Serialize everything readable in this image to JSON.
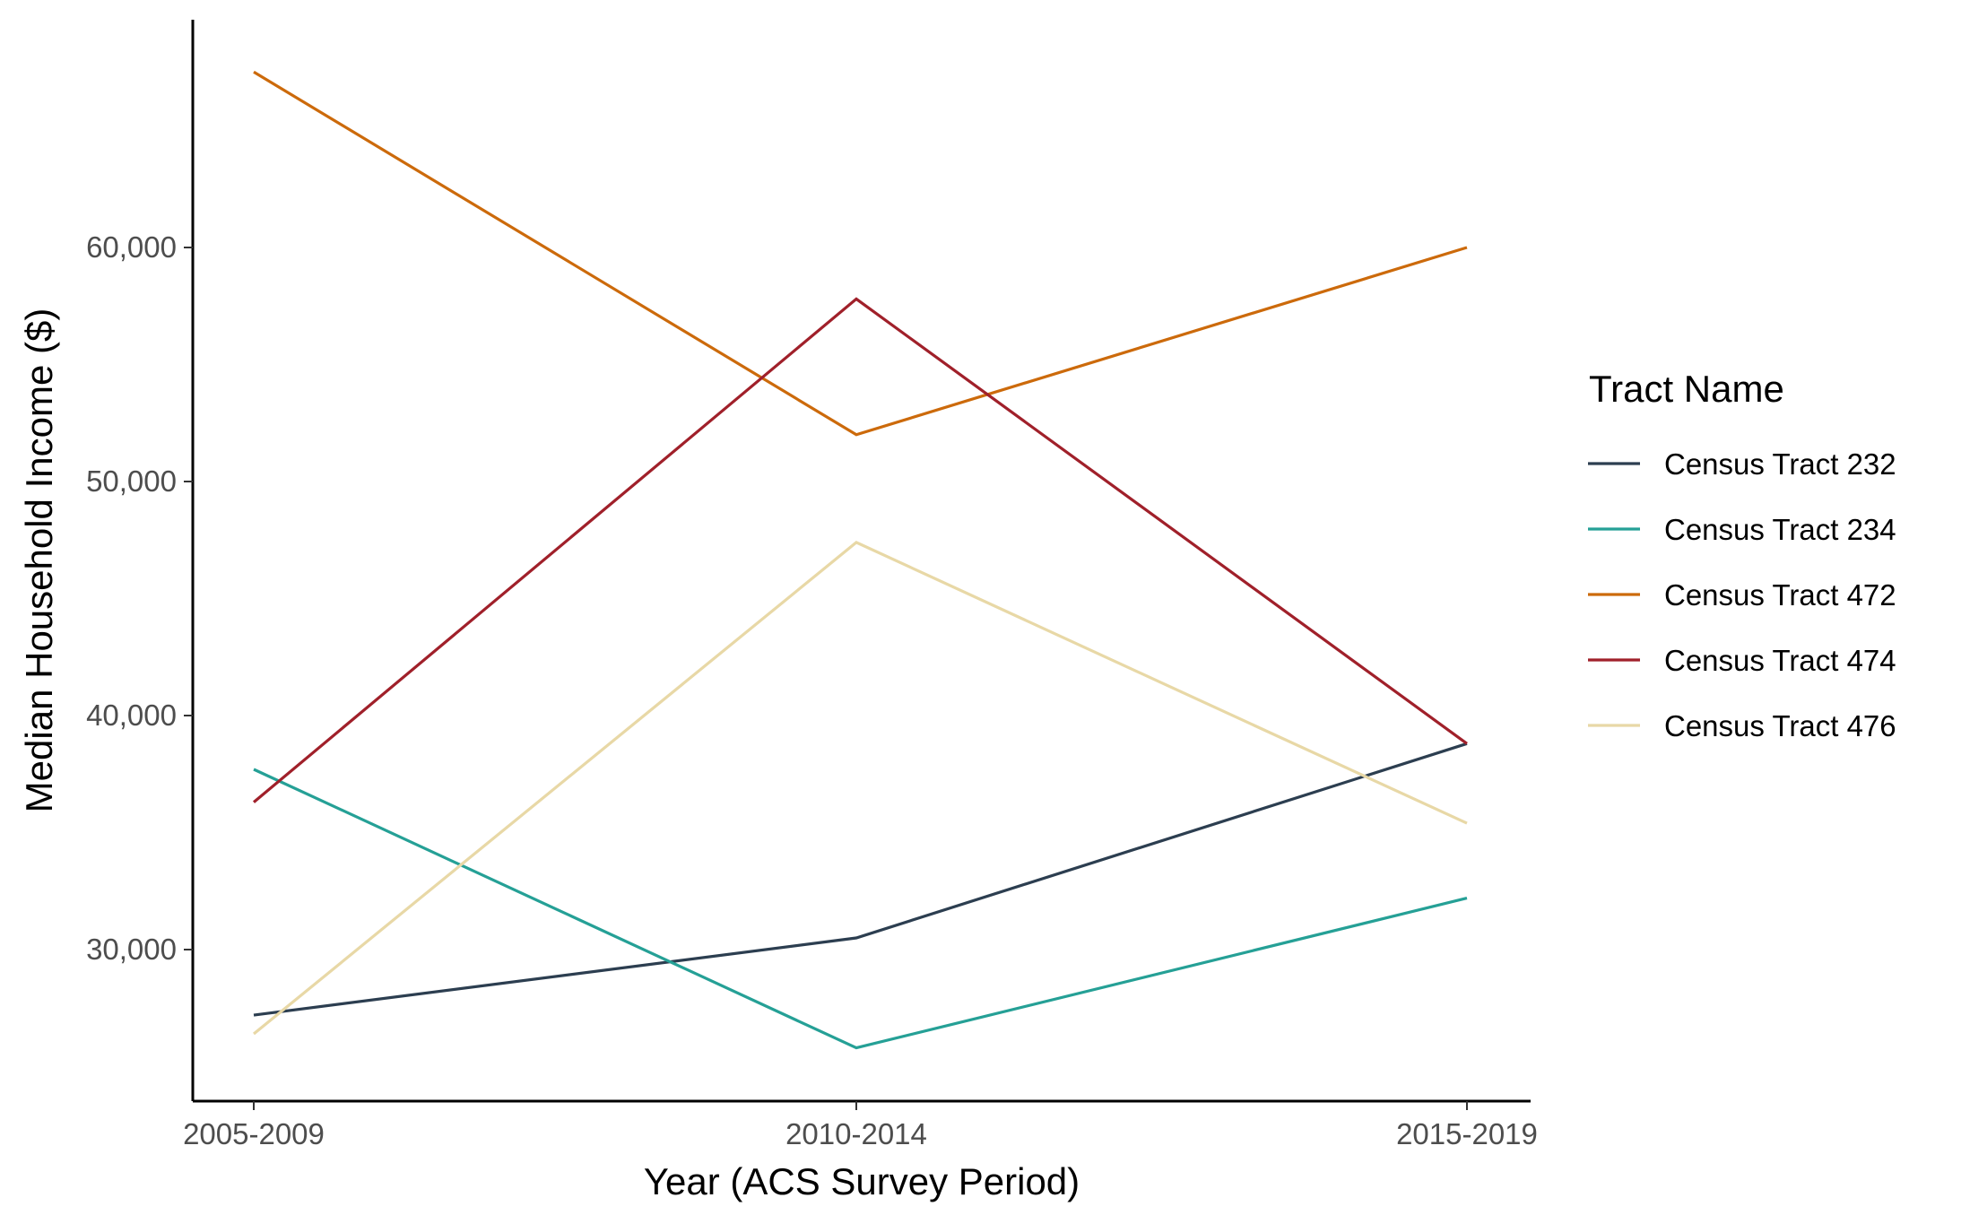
{
  "chart_data": {
    "type": "line",
    "title": "",
    "xlabel": "Year (ACS Survey Period)",
    "ylabel": "Median Household Income ($)",
    "categories": [
      "2005-2009",
      "2010-2014",
      "2015-2019"
    ],
    "yticks": [
      30000,
      40000,
      50000,
      60000
    ],
    "ytick_labels": [
      "30,000",
      "40,000",
      "50,000",
      "60,000"
    ],
    "ylim": [
      24000,
      69700
    ],
    "grid": false,
    "legend": {
      "title": "Tract Name",
      "placement": "right"
    },
    "series": [
      {
        "name": "Census Tract 232",
        "color": "#2c3e50",
        "values": [
          27200,
          30500,
          38800
        ]
      },
      {
        "name": "Census Tract 234",
        "color": "#25a096",
        "values": [
          37700,
          25800,
          32200
        ]
      },
      {
        "name": "Census Tract 472",
        "color": "#cc6a0b",
        "values": [
          67500,
          52000,
          60000
        ]
      },
      {
        "name": "Census Tract 474",
        "color": "#a0202a",
        "values": [
          36300,
          57800,
          38800
        ]
      },
      {
        "name": "Census Tract 476",
        "color": "#e8d8a6",
        "values": [
          26400,
          47400,
          35400
        ]
      }
    ]
  }
}
